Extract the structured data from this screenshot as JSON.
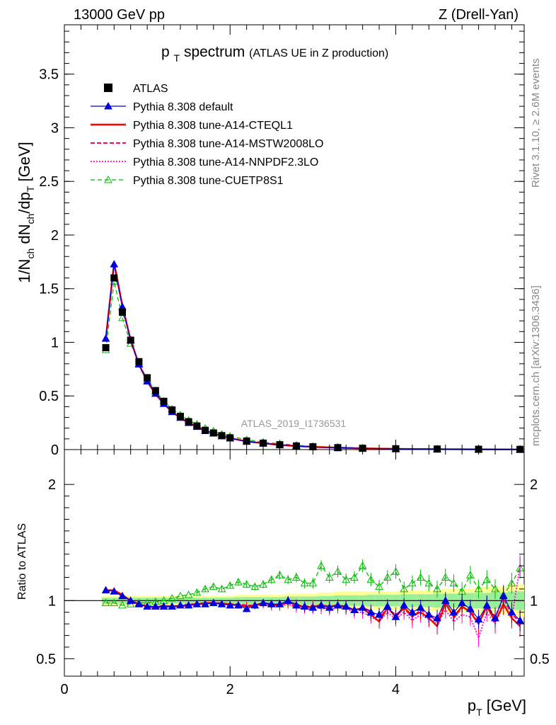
{
  "header": {
    "energy": "13000 GeV pp",
    "process": "Z (Drell-Yan)"
  },
  "side_labels": {
    "rivet": "Rivet 3.1.10, ≥ 2.6M events",
    "mcplots": "mcplots.cern.ch [arXiv:1306.3436]"
  },
  "chart_data": {
    "type": "line",
    "title": "p_T spectrum",
    "title_main": "p",
    "title_sub": "T",
    "title_rest": " spectrum",
    "title_note": "(ATLAS UE in Z production)",
    "analysis_label": "ATLAS_2019_I1736531",
    "ylabel_main": "1/N",
    "ylabel_parts": [
      "1/N",
      "ch",
      " dN",
      "ch",
      "/dp",
      "T",
      " [GeV]"
    ],
    "xlabel_main": "p",
    "xlabel_sub": "T",
    "xlabel_unit": " [GeV]",
    "ratio_ylabel": "Ratio to ATLAS",
    "xlim": [
      0,
      5.5
    ],
    "ylim": [
      0,
      4.0
    ],
    "ratio_ylim": [
      0.35,
      2.3
    ],
    "x_ticks": [
      "0",
      "2",
      "4"
    ],
    "y_ticks": [
      "0",
      "0.5",
      "1",
      "1.5",
      "2",
      "2.5",
      "3",
      "3.5"
    ],
    "ratio_ticks": [
      "0.5",
      "1",
      "2"
    ],
    "legend_position": "top-left",
    "series": [
      {
        "name": "ATLAS",
        "color": "#000000"
      },
      {
        "name": "Pythia 8.308 default",
        "color": "#0000dd"
      },
      {
        "name": "Pythia 8.308 tune-A14-CTEQL1",
        "color": "#ff0000"
      },
      {
        "name": "Pythia 8.308 tune-A14-MSTW2008LO",
        "color": "#ff0066"
      },
      {
        "name": "Pythia 8.308 tune-A14-NNPDF2.3LO",
        "color": "#ff00dd"
      },
      {
        "name": "Pythia 8.308 tune-CUETP8S1",
        "color": "#00bb00"
      }
    ],
    "x": [
      0.5,
      0.6,
      0.7,
      0.8,
      0.9,
      1.0,
      1.1,
      1.2,
      1.3,
      1.4,
      1.5,
      1.6,
      1.7,
      1.8,
      1.9,
      2.0,
      2.2,
      2.4,
      2.6,
      2.8,
      3.0,
      3.3,
      3.6,
      4.0,
      4.5,
      5.0,
      5.5
    ],
    "atlas": [
      0.95,
      1.6,
      1.28,
      1.02,
      0.82,
      0.67,
      0.55,
      0.45,
      0.37,
      0.31,
      0.26,
      0.22,
      0.18,
      0.155,
      0.13,
      0.11,
      0.08,
      0.06,
      0.045,
      0.034,
      0.026,
      0.018,
      0.012,
      0.008,
      0.005,
      0.003,
      0.002
    ],
    "ratio_x": [
      0.5,
      0.6,
      0.7,
      0.8,
      0.9,
      1.0,
      1.1,
      1.2,
      1.3,
      1.4,
      1.5,
      1.6,
      1.7,
      1.8,
      1.9,
      2.0,
      2.1,
      2.2,
      2.3,
      2.4,
      2.5,
      2.6,
      2.7,
      2.8,
      2.9,
      3.0,
      3.1,
      3.2,
      3.3,
      3.4,
      3.5,
      3.6,
      3.7,
      3.8,
      3.9,
      4.0,
      4.1,
      4.2,
      4.3,
      4.4,
      4.5,
      4.6,
      4.7,
      4.8,
      4.9,
      5.0,
      5.1,
      5.2,
      5.3,
      5.4,
      5.5
    ],
    "ratio_default": [
      1.09,
      1.08,
      1.04,
      1.0,
      0.97,
      0.95,
      0.95,
      0.95,
      0.95,
      0.96,
      0.96,
      0.97,
      0.97,
      0.98,
      0.97,
      0.96,
      0.96,
      0.93,
      0.96,
      0.98,
      0.97,
      0.97,
      1.0,
      0.96,
      0.95,
      0.94,
      0.96,
      0.94,
      0.96,
      0.95,
      0.92,
      0.94,
      0.9,
      0.88,
      0.95,
      0.86,
      0.96,
      0.9,
      0.94,
      0.88,
      0.85,
      1.0,
      0.9,
      0.98,
      0.93,
      0.84,
      0.96,
      0.85,
      1.04,
      0.9,
      0.83
    ],
    "ratio_cteql1": [
      1.09,
      1.09,
      1.05,
      1.0,
      0.97,
      0.95,
      0.94,
      0.95,
      0.95,
      0.95,
      0.96,
      0.97,
      0.98,
      0.98,
      0.97,
      0.97,
      0.96,
      0.95,
      0.96,
      0.98,
      0.97,
      0.96,
      0.99,
      0.97,
      0.94,
      0.95,
      0.96,
      0.95,
      0.96,
      0.94,
      0.92,
      0.93,
      0.88,
      0.82,
      0.94,
      0.86,
      0.94,
      0.87,
      0.9,
      0.85,
      0.78,
      0.98,
      0.86,
      0.95,
      0.9,
      0.8,
      0.95,
      0.82,
      0.97,
      0.85,
      0.78
    ],
    "ratio_mstw": [
      1.08,
      1.08,
      1.04,
      1.0,
      0.97,
      0.95,
      0.95,
      0.96,
      0.95,
      0.96,
      0.97,
      0.97,
      0.97,
      0.98,
      0.98,
      0.97,
      0.97,
      0.96,
      0.96,
      0.97,
      0.96,
      0.96,
      0.98,
      0.95,
      0.95,
      0.96,
      0.93,
      0.94,
      0.96,
      0.95,
      0.92,
      0.94,
      0.91,
      0.86,
      0.93,
      0.88,
      0.93,
      0.86,
      0.92,
      0.88,
      0.82,
      0.98,
      0.85,
      0.94,
      0.92,
      0.8,
      0.96,
      0.86,
      1.02,
      0.88,
      0.82
    ],
    "ratio_nnpdf": [
      1.09,
      1.08,
      1.04,
      1.0,
      0.96,
      0.94,
      0.94,
      0.94,
      0.95,
      0.96,
      0.96,
      0.97,
      0.97,
      0.98,
      0.98,
      0.96,
      0.97,
      0.95,
      0.96,
      0.97,
      0.95,
      0.95,
      0.97,
      0.94,
      0.93,
      0.93,
      0.95,
      0.92,
      0.94,
      0.93,
      0.9,
      0.9,
      0.86,
      0.82,
      0.9,
      0.84,
      0.9,
      0.83,
      0.88,
      0.84,
      0.8,
      0.92,
      0.82,
      0.88,
      0.86,
      0.68,
      0.9,
      0.8,
      0.96,
      0.85,
      1.3
    ],
    "ratio_cuetp8s1": [
      0.98,
      0.98,
      0.96,
      0.97,
      0.98,
      0.98,
      0.99,
      1.0,
      1.02,
      1.04,
      1.05,
      1.07,
      1.1,
      1.12,
      1.1,
      1.13,
      1.16,
      1.14,
      1.12,
      1.14,
      1.18,
      1.22,
      1.18,
      1.2,
      1.15,
      1.15,
      1.3,
      1.2,
      1.25,
      1.18,
      1.2,
      1.3,
      1.18,
      1.12,
      1.2,
      1.25,
      1.1,
      1.15,
      1.2,
      1.15,
      1.1,
      1.2,
      1.15,
      1.08,
      1.22,
      1.1,
      1.18,
      1.1,
      1.05,
      1.15,
      1.28
    ],
    "ratio_band_yellow": [
      0.04,
      0.04,
      0.04,
      0.04,
      0.04,
      0.04,
      0.04,
      0.04,
      0.04,
      0.04,
      0.04,
      0.04,
      0.04,
      0.04,
      0.04,
      0.04,
      0.05,
      0.05,
      0.05,
      0.05,
      0.05,
      0.05,
      0.06,
      0.06,
      0.06,
      0.06,
      0.07,
      0.07,
      0.08,
      0.08,
      0.08,
      0.08,
      0.08,
      0.08,
      0.08,
      0.08,
      0.09,
      0.09,
      0.09,
      0.09,
      0.09,
      0.1,
      0.1,
      0.1,
      0.1,
      0.12,
      0.12,
      0.12,
      0.12,
      0.14,
      0.14
    ],
    "ratio_band_green": [
      0.025,
      0.025,
      0.025,
      0.025,
      0.025,
      0.025,
      0.025,
      0.025,
      0.025,
      0.025,
      0.025,
      0.025,
      0.025,
      0.025,
      0.025,
      0.025,
      0.03,
      0.03,
      0.03,
      0.03,
      0.03,
      0.03,
      0.035,
      0.035,
      0.035,
      0.035,
      0.04,
      0.04,
      0.045,
      0.045,
      0.045,
      0.045,
      0.05,
      0.05,
      0.05,
      0.05,
      0.055,
      0.055,
      0.055,
      0.055,
      0.06,
      0.06,
      0.06,
      0.06,
      0.065,
      0.065,
      0.065,
      0.07,
      0.07,
      0.08,
      0.08
    ]
  }
}
